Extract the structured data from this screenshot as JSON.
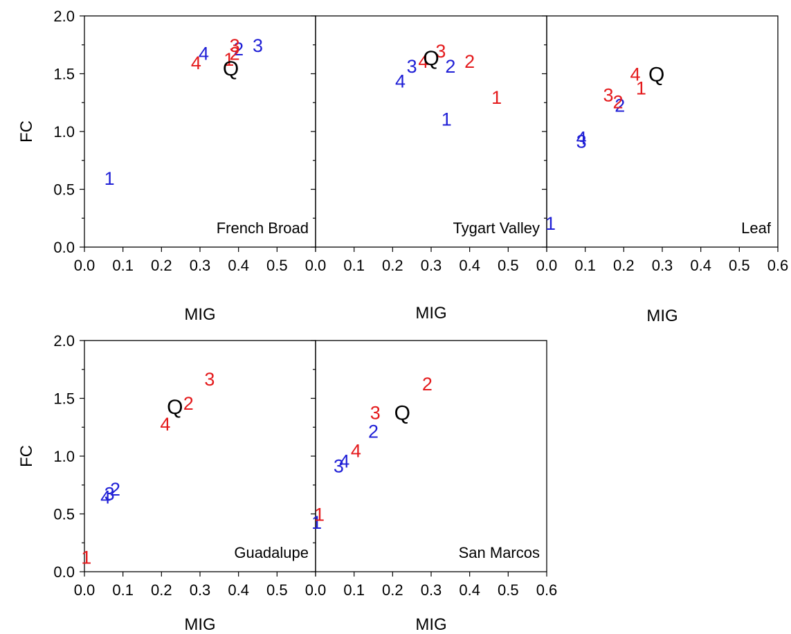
{
  "colors": {
    "red": "#e41a1c",
    "blue": "#1f1fd6",
    "black": "#000000"
  },
  "chart_data": [
    {
      "type": "scatter",
      "panel": "French Broad",
      "xlabel": "MIG",
      "ylabel": "FC",
      "xlim": [
        0,
        0.6
      ],
      "ylim": [
        0,
        2.0
      ],
      "x_ticks": [
        "0.0",
        "0.1",
        "0.2",
        "0.3",
        "0.4",
        "0.5"
      ],
      "y_ticks": [
        "0.0",
        "0.5",
        "1.0",
        "1.5",
        "2.0"
      ],
      "points": [
        {
          "label": "1",
          "x": 0.065,
          "y": 0.6,
          "color": "blue"
        },
        {
          "label": "2",
          "x": 0.4,
          "y": 1.72,
          "color": "blue"
        },
        {
          "label": "3",
          "x": 0.45,
          "y": 1.75,
          "color": "blue"
        },
        {
          "label": "4",
          "x": 0.31,
          "y": 1.68,
          "color": "blue"
        },
        {
          "label": "1",
          "x": 0.375,
          "y": 1.63,
          "color": "red"
        },
        {
          "label": "2",
          "x": 0.39,
          "y": 1.68,
          "color": "red"
        },
        {
          "label": "3",
          "x": 0.39,
          "y": 1.75,
          "color": "red"
        },
        {
          "label": "4",
          "x": 0.29,
          "y": 1.6,
          "color": "red"
        },
        {
          "label": "Q",
          "x": 0.38,
          "y": 1.55,
          "color": "black"
        }
      ]
    },
    {
      "type": "scatter",
      "panel": "Tygart Valley",
      "xlabel": "MIG",
      "ylabel": "",
      "xlim": [
        0,
        0.6
      ],
      "ylim": [
        0,
        2.0
      ],
      "x_ticks": [
        "0.0",
        "0.1",
        "0.2",
        "0.3",
        "0.4",
        "0.5"
      ],
      "y_ticks": [],
      "points": [
        {
          "label": "1",
          "x": 0.34,
          "y": 1.11,
          "color": "blue"
        },
        {
          "label": "2",
          "x": 0.35,
          "y": 1.57,
          "color": "blue"
        },
        {
          "label": "3",
          "x": 0.25,
          "y": 1.57,
          "color": "blue"
        },
        {
          "label": "4",
          "x": 0.22,
          "y": 1.44,
          "color": "blue"
        },
        {
          "label": "1",
          "x": 0.47,
          "y": 1.3,
          "color": "red"
        },
        {
          "label": "2",
          "x": 0.4,
          "y": 1.61,
          "color": "red"
        },
        {
          "label": "3",
          "x": 0.325,
          "y": 1.7,
          "color": "red"
        },
        {
          "label": "4",
          "x": 0.28,
          "y": 1.61,
          "color": "red"
        },
        {
          "label": "Q",
          "x": 0.3,
          "y": 1.64,
          "color": "black"
        }
      ]
    },
    {
      "type": "scatter",
      "panel": "Leaf",
      "xlabel": "MIG",
      "ylabel": "",
      "xlim": [
        0,
        0.6
      ],
      "ylim": [
        0,
        2.0
      ],
      "x_ticks": [
        "0.0",
        "0.1",
        "0.2",
        "0.3",
        "0.4",
        "0.5",
        "0.6"
      ],
      "y_ticks": [],
      "points": [
        {
          "label": "1",
          "x": 0.01,
          "y": 0.21,
          "color": "blue"
        },
        {
          "label": "2",
          "x": 0.19,
          "y": 1.23,
          "color": "blue"
        },
        {
          "label": "3",
          "x": 0.09,
          "y": 0.92,
          "color": "blue"
        },
        {
          "label": "4",
          "x": 0.09,
          "y": 0.95,
          "color": "blue"
        },
        {
          "label": "1",
          "x": 0.245,
          "y": 1.38,
          "color": "red"
        },
        {
          "label": "2",
          "x": 0.185,
          "y": 1.26,
          "color": "red"
        },
        {
          "label": "3",
          "x": 0.16,
          "y": 1.32,
          "color": "red"
        },
        {
          "label": "4",
          "x": 0.23,
          "y": 1.5,
          "color": "red"
        },
        {
          "label": "Q",
          "x": 0.285,
          "y": 1.5,
          "color": "black"
        }
      ]
    },
    {
      "type": "scatter",
      "panel": "Guadalupe",
      "xlabel": "MIG",
      "ylabel": "FC",
      "xlim": [
        0,
        0.6
      ],
      "ylim": [
        0,
        2.0
      ],
      "x_ticks": [
        "0.0",
        "0.1",
        "0.2",
        "0.3",
        "0.4",
        "0.5"
      ],
      "y_ticks": [
        "0.0",
        "0.5",
        "1.0",
        "1.5",
        "2.0"
      ],
      "points": [
        {
          "label": "2",
          "x": 0.08,
          "y": 0.72,
          "color": "blue"
        },
        {
          "label": "3",
          "x": 0.065,
          "y": 0.68,
          "color": "blue"
        },
        {
          "label": "4",
          "x": 0.055,
          "y": 0.65,
          "color": "blue"
        },
        {
          "label": "1",
          "x": 0.005,
          "y": 0.13,
          "color": "red"
        },
        {
          "label": "2",
          "x": 0.27,
          "y": 1.46,
          "color": "red"
        },
        {
          "label": "3",
          "x": 0.325,
          "y": 1.67,
          "color": "red"
        },
        {
          "label": "4",
          "x": 0.21,
          "y": 1.28,
          "color": "red"
        },
        {
          "label": "Q",
          "x": 0.235,
          "y": 1.43,
          "color": "black"
        }
      ]
    },
    {
      "type": "scatter",
      "panel": "San Marcos",
      "xlabel": "MIG",
      "ylabel": "",
      "xlim": [
        0,
        0.6
      ],
      "ylim": [
        0,
        2.0
      ],
      "x_ticks": [
        "0.0",
        "0.1",
        "0.2",
        "0.3",
        "0.4",
        "0.5",
        "0.6"
      ],
      "y_ticks": [],
      "points": [
        {
          "label": "1",
          "x": 0.003,
          "y": 0.43,
          "color": "blue"
        },
        {
          "label": "2",
          "x": 0.15,
          "y": 1.22,
          "color": "blue"
        },
        {
          "label": "3",
          "x": 0.06,
          "y": 0.92,
          "color": "blue"
        },
        {
          "label": "4",
          "x": 0.075,
          "y": 0.96,
          "color": "blue"
        },
        {
          "label": "1",
          "x": 0.01,
          "y": 0.5,
          "color": "red"
        },
        {
          "label": "2",
          "x": 0.29,
          "y": 1.63,
          "color": "red"
        },
        {
          "label": "3",
          "x": 0.155,
          "y": 1.38,
          "color": "red"
        },
        {
          "label": "4",
          "x": 0.105,
          "y": 1.05,
          "color": "red"
        },
        {
          "label": "Q",
          "x": 0.225,
          "y": 1.38,
          "color": "black"
        }
      ]
    }
  ]
}
